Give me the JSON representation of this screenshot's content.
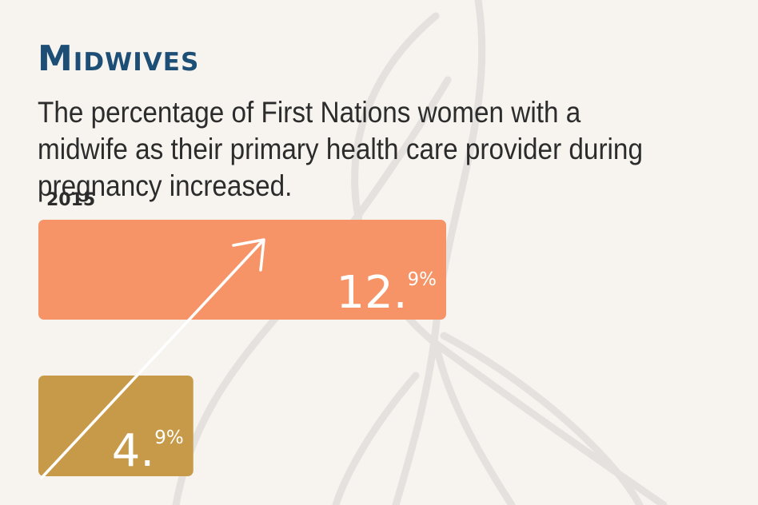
{
  "header": {
    "title": "Midwives",
    "subtitle": "The percentage of First Nations women with a midwife as their primary health care provider during pregnancy increased."
  },
  "chart_data": {
    "type": "bar",
    "orientation": "horizontal",
    "categories": [
      "",
      "2015"
    ],
    "values": [
      4.9,
      12.9
    ],
    "value_labels": [
      {
        "main": "4.",
        "sup": "9%"
      },
      {
        "main": "12.",
        "sup": "9%"
      }
    ],
    "colors": [
      "#c79a49",
      "#f69467"
    ],
    "annotation": "arrow indicating increase",
    "title": "",
    "xlabel": "",
    "ylabel": ""
  },
  "colors": {
    "background": "#f7f3ef",
    "title": "#1d4f76",
    "text": "#2c2c2c",
    "decor_lines": "#e4e1de"
  }
}
